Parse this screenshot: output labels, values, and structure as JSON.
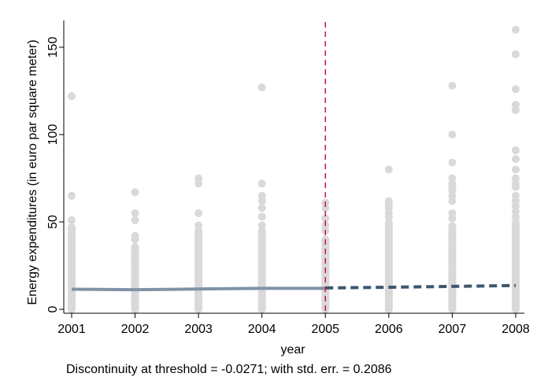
{
  "chart_data": {
    "type": "scatter",
    "xlabel": "year",
    "ylabel": "Energy expenditures (in euro par square meter)",
    "xlim": [
      2001,
      2008
    ],
    "ylim": [
      0,
      160
    ],
    "x_ticks": [
      2001,
      2002,
      2003,
      2004,
      2005,
      2006,
      2007,
      2008
    ],
    "y_ticks": [
      0,
      50,
      100,
      150
    ],
    "grid": false,
    "threshold": 2005,
    "note": "Discontinuity at threshold = -0.0271; with std. err. = 0.2086",
    "colors": {
      "points": "#d9d9d9",
      "fit_before": "#7f93a6",
      "fit_after": "#3d5670",
      "threshold_line": "#c4183c",
      "axis": "#000000"
    },
    "scatter_points": [
      {
        "x": 2001,
        "dense_max": 47,
        "outliers": [
          51,
          65,
          122
        ]
      },
      {
        "x": 2002,
        "dense_max": 36,
        "outliers": [
          40,
          42,
          51,
          55,
          67
        ]
      },
      {
        "x": 2003,
        "dense_max": 45,
        "outliers": [
          48,
          55,
          72,
          75
        ]
      },
      {
        "x": 2004,
        "dense_max": 45,
        "outliers": [
          48,
          53,
          58,
          62,
          65,
          72,
          127
        ]
      },
      {
        "x": 2005,
        "dense_max": 40,
        "outliers": [
          45,
          48,
          52,
          58,
          61
        ]
      },
      {
        "x": 2006,
        "dense_max": 50,
        "outliers": [
          53,
          55,
          58,
          60,
          62,
          80
        ]
      },
      {
        "x": 2007,
        "dense_max": 48,
        "outliers": [
          52,
          55,
          62,
          65,
          68,
          70,
          72,
          75,
          84,
          100,
          128
        ]
      },
      {
        "x": 2008,
        "dense_max": 50,
        "outliers": [
          53,
          56,
          59,
          62,
          65,
          70,
          72,
          75,
          80,
          86,
          91,
          114,
          117,
          126,
          146,
          160
        ]
      }
    ],
    "series": [
      {
        "style": "solid",
        "x": [
          2001,
          2002,
          2003,
          2004,
          2005
        ],
        "values": [
          11.5,
          11.2,
          11.6,
          12.0,
          12.0
        ]
      },
      {
        "style": "dashed",
        "x": [
          2005,
          2006,
          2007,
          2008
        ],
        "values": [
          12.2,
          12.6,
          13.1,
          13.6
        ]
      }
    ]
  }
}
